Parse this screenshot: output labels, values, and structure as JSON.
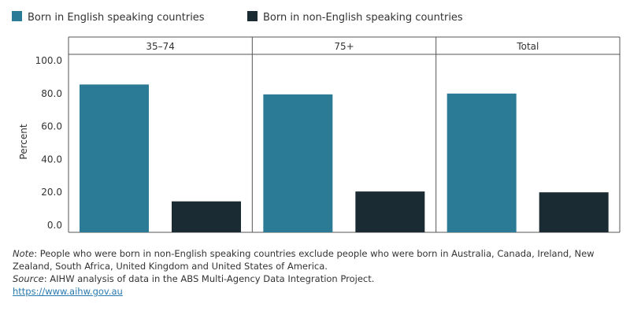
{
  "chart_data": {
    "type": "bar",
    "ylabel": "Percent",
    "ylim": [
      0,
      100
    ],
    "yticks": [
      "0.0",
      "20.0",
      "40.0",
      "60.0",
      "80.0",
      "100.0"
    ],
    "ytick_values": [
      0,
      20,
      40,
      60,
      80,
      100
    ],
    "panels": [
      "35–74",
      "75+",
      "Total"
    ],
    "series": [
      {
        "name": "Born in English speaking countries",
        "color": "#2b7a96",
        "values": [
          85.5,
          79.5,
          80.0
        ]
      },
      {
        "name": "Born in non-English speaking countries",
        "color": "#1b2b33",
        "values": [
          14.5,
          20.5,
          20.0
        ]
      }
    ],
    "grid": false,
    "legend_position": "top-left"
  },
  "notes": {
    "note_label": "Note",
    "note_text": ": People who were born in non-English speaking countries exclude people who were born in Australia, Canada, Ireland, New Zealand, South Africa, United Kingdom and United States of America.",
    "source_label": "Source",
    "source_text": ": AIHW analysis of data in the ABS Multi-Agency Data Integration Project.",
    "link_text": "https://www.aihw.gov.au"
  }
}
